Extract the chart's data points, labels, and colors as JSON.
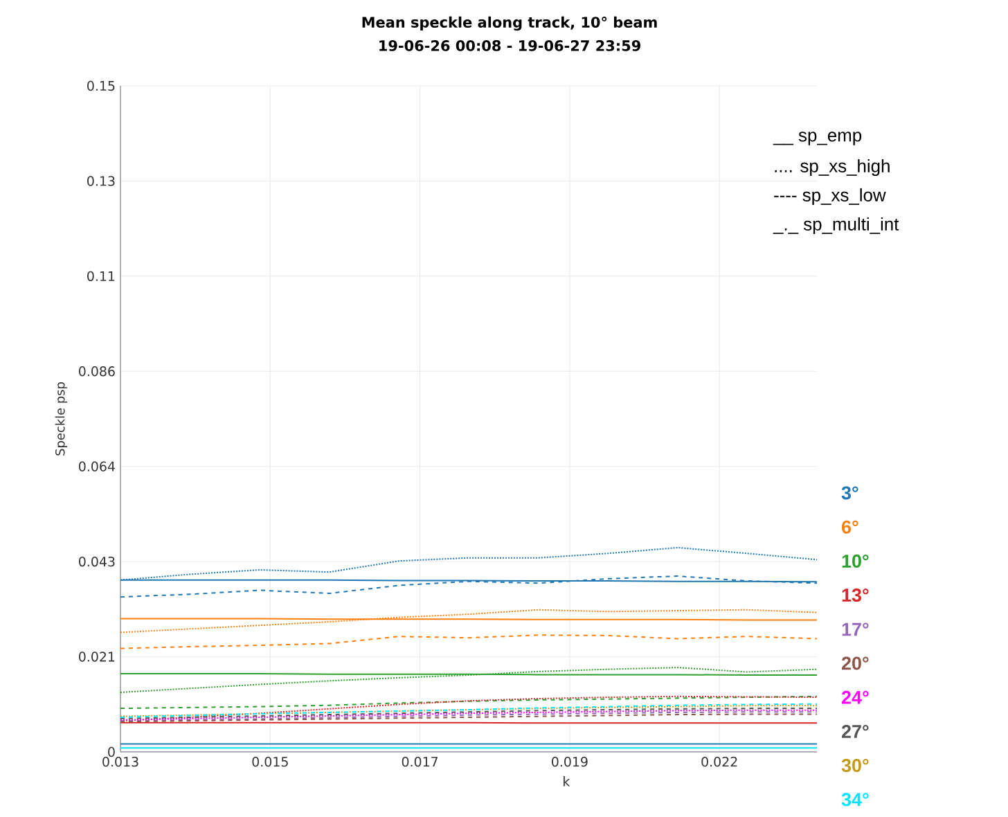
{
  "chart_data": {
    "type": "line",
    "title": "Mean speckle along track, 10° beam",
    "subtitle": "19-06-26 00:08 - 19-06-27 23:59",
    "xlabel": "k",
    "ylabel": "Speckle psp",
    "x": [
      0.013,
      0.014,
      0.015,
      0.016,
      0.017,
      0.018,
      0.019,
      0.02,
      0.021,
      0.022,
      0.023
    ],
    "xlim": [
      0.013,
      0.023
    ],
    "xticks": [
      0.013,
      {
        "value": 0.01515,
        "label": "0.015"
      },
      {
        "value": 0.0173,
        "label": "0.017"
      },
      {
        "value": 0.01945,
        "label": "0.019"
      },
      {
        "value": 0.0216,
        "label": "0.022"
      }
    ],
    "ylim": [
      0,
      0.15
    ],
    "yticks": [
      0,
      {
        "value": 0.02143,
        "label": "0.021"
      },
      {
        "value": 0.04286,
        "label": "0.043"
      },
      {
        "value": 0.06429,
        "label": "0.064"
      },
      {
        "value": 0.08571,
        "label": "0.086"
      },
      {
        "value": 0.10714,
        "label": "0.11"
      },
      {
        "value": 0.12857,
        "label": "0.13"
      },
      0.15
    ],
    "grid": true,
    "legend": "right",
    "marker": "none",
    "annotations": [
      "__ sp_emp",
      ".... sp_xs_high",
      "---- sp_xs_low",
      "_._ sp_multi_int"
    ],
    "series": [
      {
        "name": "3°",
        "color": "#1f77b4",
        "line_style": "solid",
        "values": [
          0.0387,
          0.0387,
          0.0387,
          0.0387,
          0.0386,
          0.0386,
          0.0385,
          0.0385,
          0.0384,
          0.0384,
          0.0383
        ]
      },
      {
        "color": "#1f77b4",
        "line_style": "dotted",
        "values": [
          0.0387,
          0.04,
          0.041,
          0.0405,
          0.043,
          0.0437,
          0.0437,
          0.0447,
          0.046,
          0.0447,
          0.0433
        ]
      },
      {
        "color": "#1f77b4",
        "line_style": "dashed",
        "values": [
          0.0349,
          0.0355,
          0.0364,
          0.0357,
          0.0375,
          0.0384,
          0.038,
          0.039,
          0.0396,
          0.0385,
          0.038
        ]
      },
      {
        "color": "#1f77b4",
        "line_style": "solid",
        "values": [
          0.0018,
          0.0018,
          0.0018,
          0.0018,
          0.0018,
          0.0018,
          0.0018,
          0.0018,
          0.0018,
          0.0018,
          0.0018
        ]
      },
      {
        "name": "6°",
        "color": "#ff7f0e",
        "line_style": "solid",
        "values": [
          0.03,
          0.03,
          0.03,
          0.0299,
          0.0299,
          0.0299,
          0.0298,
          0.0298,
          0.0298,
          0.0297,
          0.0297
        ]
      },
      {
        "color": "#ff7f0e",
        "line_style": "dotted",
        "values": [
          0.0269,
          0.0277,
          0.0285,
          0.0293,
          0.0303,
          0.031,
          0.032,
          0.0316,
          0.0318,
          0.032,
          0.0314
        ]
      },
      {
        "color": "#ff7f0e",
        "line_style": "dashed",
        "values": [
          0.0233,
          0.0237,
          0.024,
          0.0244,
          0.026,
          0.0257,
          0.0263,
          0.0262,
          0.0255,
          0.026,
          0.0255
        ]
      },
      {
        "name": "10°",
        "color": "#2ca02c",
        "line_style": "solid",
        "values": [
          0.0176,
          0.0176,
          0.0176,
          0.0175,
          0.0175,
          0.0175,
          0.0174,
          0.0174,
          0.0174,
          0.0173,
          0.0173
        ]
      },
      {
        "color": "#2ca02c",
        "line_style": "dotted",
        "values": [
          0.0134,
          0.0143,
          0.0152,
          0.016,
          0.0167,
          0.0173,
          0.0181,
          0.0186,
          0.019,
          0.018,
          0.0186
        ]
      },
      {
        "color": "#2ca02c",
        "line_style": "dashed",
        "values": [
          0.0098,
          0.01,
          0.0102,
          0.0105,
          0.011,
          0.0114,
          0.0117,
          0.0119,
          0.0121,
          0.0123,
          0.0125
        ]
      },
      {
        "name": "13°",
        "color": "#d62728",
        "line_style": "solid",
        "values": [
          0.0066,
          0.0066,
          0.0066,
          0.0066,
          0.0066,
          0.0066,
          0.0065,
          0.0065,
          0.0065,
          0.0065,
          0.0065
        ]
      },
      {
        "color": "#d62728",
        "line_style": "dotted",
        "values": [
          0.007,
          0.0078,
          0.0087,
          0.0097,
          0.0107,
          0.0115,
          0.012,
          0.0123,
          0.0125,
          0.0124,
          0.0123
        ]
      },
      {
        "name": "17°",
        "color": "#9467bd",
        "line_style": "dashed",
        "values": [
          0.007,
          0.0072,
          0.0074,
          0.0077,
          0.008,
          0.0083,
          0.0085,
          0.0087,
          0.0089,
          0.009,
          0.009
        ]
      },
      {
        "name": "20°",
        "color": "#8c564b",
        "line_style": "dashed",
        "values": [
          0.0068,
          0.007,
          0.0072,
          0.0074,
          0.0076,
          0.0078,
          0.008,
          0.0082,
          0.0084,
          0.0085,
          0.0085
        ]
      },
      {
        "name": "24°",
        "color": "#ff00ff",
        "line_style": "dotted",
        "values": [
          0.0072,
          0.0075,
          0.0078,
          0.0081,
          0.0084,
          0.0087,
          0.0089,
          0.0091,
          0.0093,
          0.0094,
          0.0094
        ]
      },
      {
        "name": "27°",
        "color": "#555555",
        "line_style": "dashed",
        "values": [
          0.0075,
          0.0078,
          0.0081,
          0.0084,
          0.0087,
          0.009,
          0.0093,
          0.0095,
          0.0097,
          0.0098,
          0.0098
        ]
      },
      {
        "name": "30°",
        "color": "#c49a1a",
        "line_style": "dotted",
        "values": [
          0.008,
          0.0083,
          0.0086,
          0.0089,
          0.0092,
          0.0095,
          0.0098,
          0.01,
          0.0102,
          0.0104,
          0.0104
        ]
      },
      {
        "name": "34°",
        "color": "#00e5ff",
        "line_style": "dashed",
        "values": [
          0.0078,
          0.0082,
          0.0086,
          0.0089,
          0.0092,
          0.0095,
          0.0099,
          0.0102,
          0.0105,
          0.0107,
          0.0108
        ]
      },
      {
        "color": "#00e5ff",
        "line_style": "solid",
        "values": [
          0.0009,
          0.0009,
          0.0009,
          0.0009,
          0.0009,
          0.0009,
          0.0009,
          0.0009,
          0.0009,
          0.0009,
          0.0009
        ]
      }
    ]
  }
}
